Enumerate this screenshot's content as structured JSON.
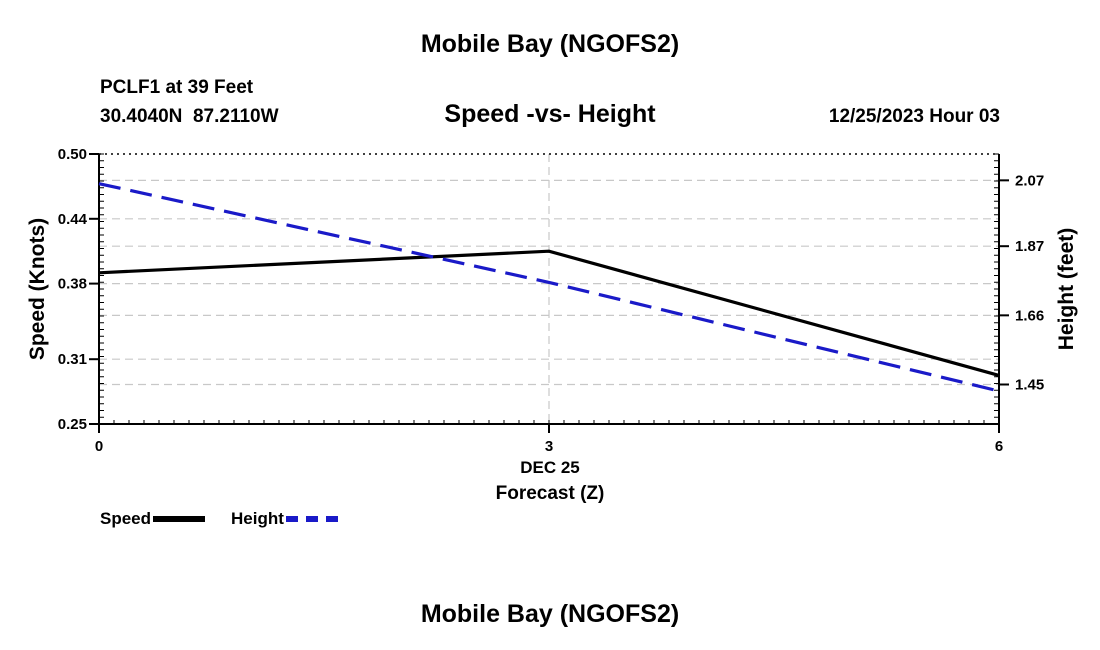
{
  "page_title": "Mobile Bay (NGOFS2)",
  "station": {
    "name_depth": "PCLF1 at 39 Feet",
    "coords": "30.4040N  87.2110W",
    "datetime": "12/25/2023 Hour 03"
  },
  "footer_title": "Mobile Bay (NGOFS2)",
  "colors": {
    "speed": "#000000",
    "height": "#1a1ac8",
    "grid": "#c8c8c8"
  },
  "chart_data": {
    "type": "line",
    "title": "Speed -vs- Height",
    "xlabel": "Forecast (Z)",
    "x_date_label": "DEC 25",
    "x": [
      0,
      3,
      6
    ],
    "x_tick_labels": [
      "0",
      "3",
      "6"
    ],
    "xlim": [
      0,
      6
    ],
    "ylabel_left": "Speed (Knots)",
    "ylabel_right": "Height (feet)",
    "ylim_left": [
      0.25,
      0.5
    ],
    "ylim_right": [
      1.33,
      2.15
    ],
    "yticks_left": [
      "0.50",
      "0.44",
      "0.38",
      "0.31",
      "0.25"
    ],
    "yticks_right": [
      "2.07",
      "1.87",
      "1.66",
      "1.45"
    ],
    "series": [
      {
        "name": "Speed",
        "axis": "left",
        "style": "solid",
        "values": [
          0.39,
          0.41,
          0.295
        ]
      },
      {
        "name": "Height",
        "axis": "right",
        "style": "dashed",
        "values": [
          2.06,
          1.76,
          1.43
        ]
      }
    ],
    "legend": [
      "Speed",
      "Height"
    ]
  }
}
